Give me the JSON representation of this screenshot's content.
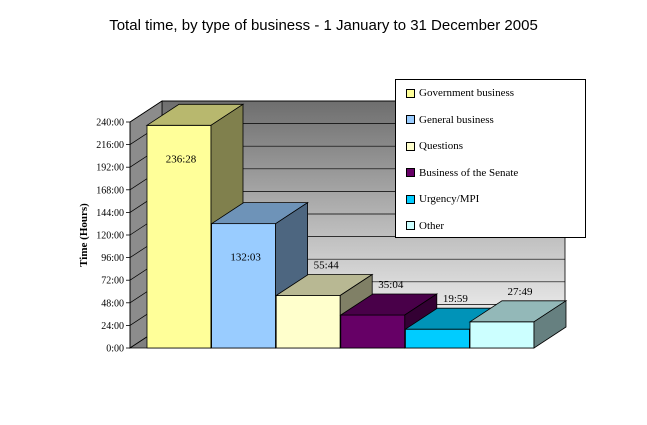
{
  "chart_data": {
    "type": "bar",
    "title": "Total time, by type of business - 1 January to 31 December 2005",
    "ylabel": "Time (Hours)",
    "xlabel": "",
    "ylim": [
      0,
      240
    ],
    "yticks": [
      "0:00",
      "24:00",
      "48:00",
      "72:00",
      "96:00",
      "120:00",
      "144:00",
      "168:00",
      "192:00",
      "216:00",
      "240:00"
    ],
    "categories": [
      "Government business",
      "General business",
      "Questions",
      "Business of the Senate",
      "Urgency/MPI",
      "Other"
    ],
    "values": [
      236.4667,
      132.05,
      55.7333,
      35.0667,
      19.9833,
      27.8167
    ],
    "labels": [
      "236:28",
      "132:03",
      "55:44",
      "35:04",
      "19:59",
      "27:49"
    ],
    "colors": [
      "#FFFF99",
      "#99CCFF",
      "#FFFFCC",
      "#660066",
      "#00CCFF",
      "#CCFFFF"
    ],
    "legend_position": "top-right",
    "grid": true
  }
}
